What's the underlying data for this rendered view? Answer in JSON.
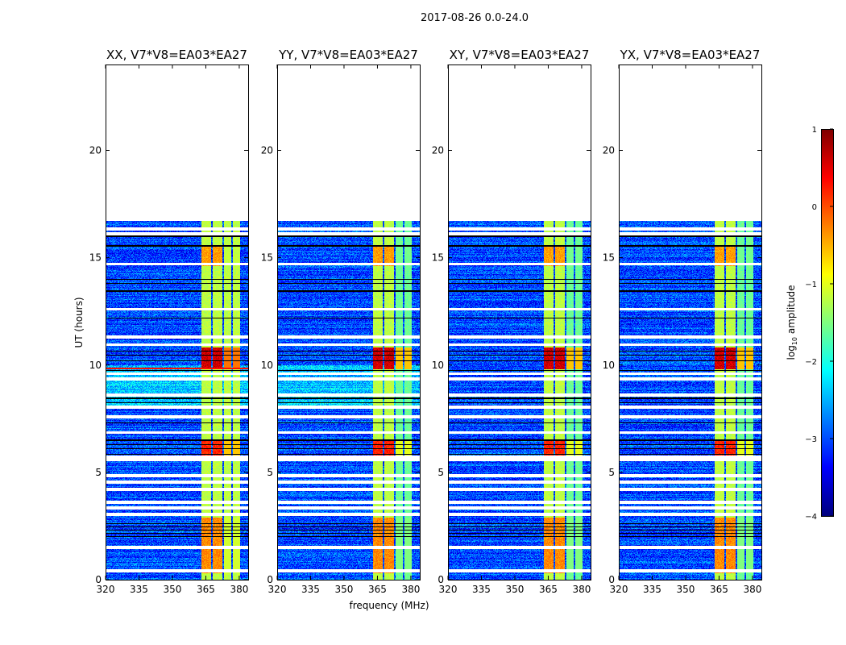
{
  "chart_data": {
    "type": "heatmap",
    "title": "2017-08-26 0.0-24.0",
    "xlabel": "frequency (MHz)",
    "ylabel": "UT (hours)",
    "xlim": [
      320,
      384
    ],
    "ylim": [
      0,
      24
    ],
    "xticks": [
      320,
      335,
      350,
      365,
      380
    ],
    "yticks": [
      0,
      5,
      10,
      15,
      20
    ],
    "data_time_range_hours": [
      0,
      16.7
    ],
    "panels": [
      {
        "title": "XX, V7*V8=EA03*EA27",
        "extra_line_hour": 9.85
      },
      {
        "title": "YY, V7*V8=EA03*EA27",
        "extra_line_hour": null
      },
      {
        "title": "XY, V7*V8=EA03*EA27",
        "extra_line_hour": null
      },
      {
        "title": "YX, V7*V8=EA03*EA27",
        "extra_line_hour": null
      }
    ],
    "background_log_amplitude": -3.0,
    "rfi_bands_mhz": [
      [
        363,
        367.5
      ],
      [
        368,
        372.5
      ],
      [
        373,
        376.5
      ],
      [
        377,
        380.5
      ]
    ],
    "rfi_band_log_amplitude": -1.2,
    "strong_rfi_intervals_hours": [
      [
        9.8,
        10.8,
        0.6
      ],
      [
        5.8,
        6.5,
        0.2
      ],
      [
        14.6,
        15.6,
        -0.4
      ],
      [
        0.3,
        2.9,
        -0.3
      ]
    ],
    "flagged_hours_white": [
      0.4,
      1.5,
      3.05,
      3.35,
      3.6,
      4.2,
      4.55,
      4.85,
      5.6,
      5.7,
      6.85,
      7.6,
      8.05,
      8.6,
      9.35,
      9.6,
      10.95,
      11.3,
      12.6,
      14.7,
      16.1,
      16.35
    ],
    "flagged_hours_black": [
      2.0,
      2.15,
      2.3,
      2.45,
      2.6,
      5.85,
      6.1,
      6.3,
      6.5,
      7.3,
      8.25,
      8.45,
      9.75,
      10.2,
      10.45,
      10.65,
      12.2,
      13.45,
      13.8,
      14.0,
      15.55,
      16.0
    ],
    "colorbar": {
      "label": "log10 amplitude",
      "range": [
        -4,
        1
      ],
      "ticks": [
        1,
        0,
        -1,
        -2,
        -3,
        -4
      ],
      "tick_labels": [
        "1",
        "0",
        "−1",
        "−2",
        "−3",
        "−4"
      ],
      "colormap": "jet"
    }
  }
}
